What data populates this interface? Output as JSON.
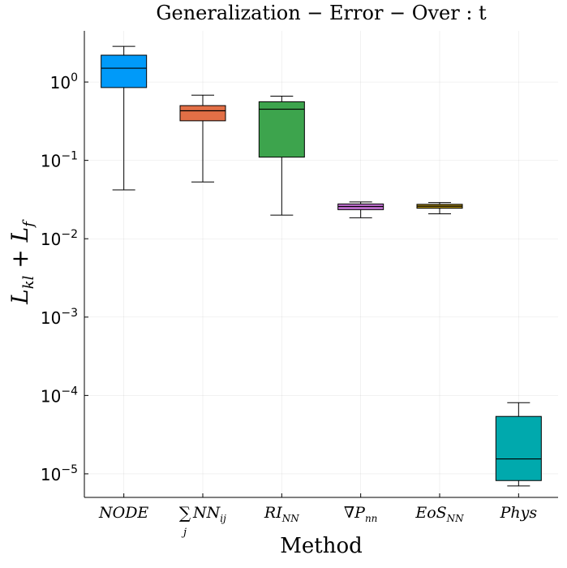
{
  "chart_data": {
    "type": "box",
    "title": "Generalization − Error − Over : t",
    "xlabel": "Method",
    "ylabel": "L_kl + L_f",
    "yscale": "log10",
    "ylim": [
      5e-06,
      4.5
    ],
    "y_ticks": [
      {
        "value": 1e-05,
        "exp": "−5"
      },
      {
        "value": 0.0001,
        "exp": "−4"
      },
      {
        "value": 0.001,
        "exp": "−3"
      },
      {
        "value": 0.01,
        "exp": "−2"
      },
      {
        "value": 0.1,
        "exp": "−1"
      },
      {
        "value": 1,
        "exp": "0"
      }
    ],
    "tick_base": "10",
    "grid": true,
    "legend": "none",
    "categories": [
      {
        "label": "NODE",
        "sub": "",
        "prefix": ""
      },
      {
        "label": "NN",
        "sub": "ij",
        "prefix": "∑",
        "prefix_sub": "j"
      },
      {
        "label": "RI",
        "sub": "NN",
        "prefix": ""
      },
      {
        "label": "∇P",
        "sub": "nn",
        "prefix": ""
      },
      {
        "label": "EoS",
        "sub": "NN",
        "prefix": ""
      },
      {
        "label": "Phys",
        "sub": "",
        "prefix": ""
      }
    ],
    "series": [
      {
        "color": "#009af9",
        "whisker_low": 0.042,
        "q1": 0.85,
        "median": 1.5,
        "q3": 2.2,
        "whisker_high": 2.85
      },
      {
        "color": "#e26f46",
        "whisker_low": 0.053,
        "q1": 0.32,
        "median": 0.43,
        "q3": 0.5,
        "whisker_high": 0.68
      },
      {
        "color": "#3da44d",
        "whisker_low": 0.02,
        "q1": 0.11,
        "median": 0.45,
        "q3": 0.56,
        "whisker_high": 0.66
      },
      {
        "color": "#c271d2",
        "whisker_low": 0.0185,
        "q1": 0.0235,
        "median": 0.0258,
        "q3": 0.0278,
        "whisker_high": 0.0295
      },
      {
        "color": "#ac8d18",
        "whisker_low": 0.0208,
        "q1": 0.0245,
        "median": 0.026,
        "q3": 0.0275,
        "whisker_high": 0.029
      },
      {
        "color": "#00a9ad",
        "whisker_low": 7e-06,
        "q1": 8.2e-06,
        "median": 1.55e-05,
        "q3": 5.4e-05,
        "whisker_high": 8.1e-05
      }
    ]
  }
}
